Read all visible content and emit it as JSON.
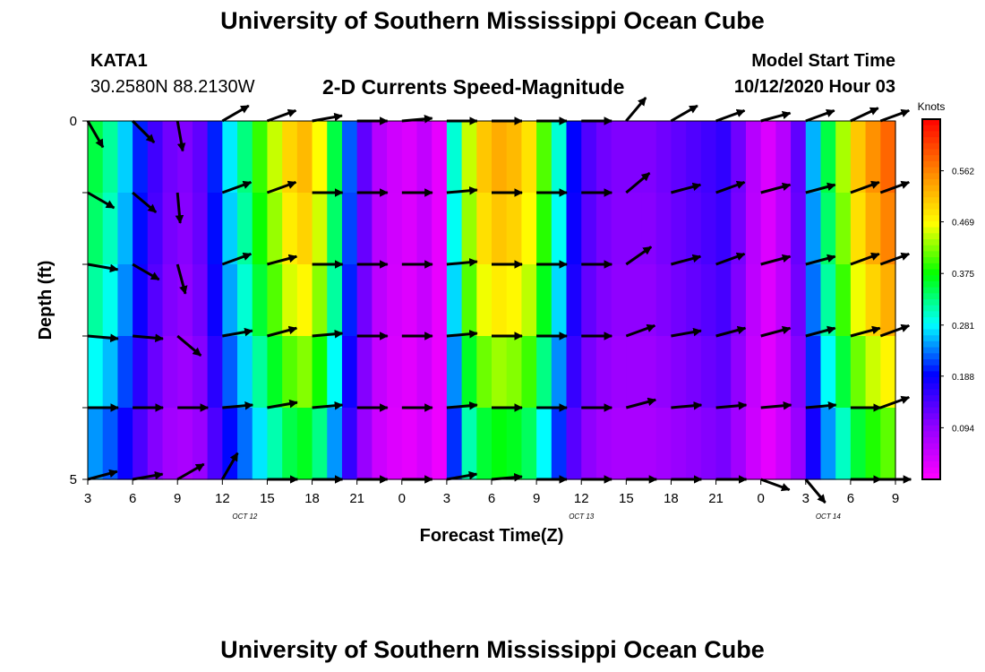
{
  "page": {
    "title": "University of Southern Mississippi Ocean Cube",
    "footer_title": "University of Southern Mississippi Ocean Cube",
    "station": "KATA1",
    "coords": "30.2580N 88.2130W",
    "chart_title": "2-D Currents Speed-Magnitude",
    "model_label": "Model Start Time",
    "model_time": "10/12/2020 Hour 03"
  },
  "chart_data": {
    "type": "heatmap",
    "title": "2-D Currents Speed-Magnitude",
    "xlabel": "Forecast Time(Z)",
    "ylabel": "Depth (ft)",
    "x_tick_labels": [
      "3",
      "6",
      "9",
      "12",
      "15",
      "18",
      "21",
      "0",
      "3",
      "6",
      "9",
      "12",
      "15",
      "18",
      "21",
      "0",
      "3",
      "6",
      "9"
    ],
    "date_labels": [
      {
        "label": "OCT 12",
        "tick_index": 3.5
      },
      {
        "label": "OCT 13",
        "tick_index": 11
      },
      {
        "label": "OCT 14",
        "tick_index": 16.5
      }
    ],
    "y_tick_labels": [
      {
        "label": "0",
        "row_edge": 0
      },
      {
        "label": "",
        "row_edge": 1
      },
      {
        "label": "",
        "row_edge": 2
      },
      {
        "label": "",
        "row_edge": 3
      },
      {
        "label": "",
        "row_edge": 4
      },
      {
        "label": "5",
        "row_edge": 5
      }
    ],
    "ylim": [
      0,
      5
    ],
    "colorbar": {
      "unit": "Knots",
      "ticks": [
        "0.562",
        "0.469",
        "0.375",
        "0.281",
        "0.188",
        "0.094"
      ],
      "tick_values": [
        0.562,
        0.469,
        0.375,
        0.281,
        0.188,
        0.094
      ],
      "range": [
        0.0,
        0.656
      ]
    },
    "time_columns": 54,
    "depth_rows": 5,
    "speed_profile_knots": [
      0.33,
      0.3,
      0.25,
      0.19,
      0.14,
      0.11,
      0.1,
      0.12,
      0.19,
      0.26,
      0.31,
      0.37,
      0.42,
      0.47,
      0.49,
      0.44,
      0.33,
      0.21,
      0.12,
      0.06,
      0.04,
      0.03,
      0.05,
      0.02,
      0.28,
      0.42,
      0.48,
      0.5,
      0.49,
      0.46,
      0.38,
      0.28,
      0.18,
      0.13,
      0.11,
      0.1,
      0.1,
      0.1,
      0.11,
      0.12,
      0.13,
      0.14,
      0.15,
      0.11,
      0.06,
      0.03,
      0.06,
      0.12,
      0.24,
      0.33,
      0.41,
      0.48,
      0.52,
      0.55
    ],
    "depth_factors": [
      1.06,
      1.02,
      0.96,
      0.86,
      0.74
    ],
    "vectors": {
      "column_indices": [
        0,
        3,
        6,
        9,
        12,
        15,
        18,
        21,
        24,
        27,
        30,
        33,
        36,
        39,
        42,
        45,
        48,
        51,
        53
      ],
      "rows": [
        [
          -60,
          -45,
          -80,
          30,
          20,
          10,
          0,
          5,
          0,
          0,
          0,
          0,
          50,
          30,
          20,
          15,
          20,
          25,
          20
        ],
        [
          -30,
          -40,
          -85,
          20,
          20,
          0,
          0,
          0,
          5,
          0,
          0,
          0,
          40,
          15,
          20,
          15,
          15,
          20,
          20
        ],
        [
          -10,
          -30,
          -75,
          20,
          15,
          0,
          0,
          0,
          5,
          0,
          0,
          0,
          35,
          15,
          20,
          15,
          15,
          20,
          20
        ],
        [
          -5,
          -5,
          -40,
          10,
          15,
          5,
          0,
          0,
          5,
          0,
          0,
          0,
          20,
          10,
          15,
          15,
          15,
          15,
          20
        ],
        [
          0,
          0,
          0,
          5,
          10,
          5,
          0,
          0,
          5,
          0,
          0,
          0,
          15,
          5,
          5,
          5,
          5,
          0,
          20
        ],
        [
          15,
          10,
          30,
          60,
          0,
          0,
          0,
          0,
          10,
          5,
          0,
          0,
          0,
          0,
          0,
          -20,
          -50,
          0,
          0
        ]
      ]
    }
  }
}
